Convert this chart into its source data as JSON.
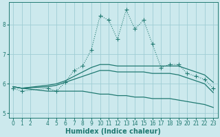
{
  "xlabel": "Humidex (Indice chaleur)",
  "bg_color": "#cce9ed",
  "grid_color": "#9fcdd4",
  "line_color": "#1e7870",
  "x": [
    0,
    1,
    2,
    3,
    4,
    5,
    6,
    7,
    8,
    9,
    10,
    11,
    12,
    13,
    14,
    15,
    16,
    17,
    18,
    19,
    20,
    21,
    22,
    23
  ],
  "line_jagged": [
    5.85,
    5.75,
    null,
    null,
    5.85,
    5.75,
    6.05,
    6.45,
    6.6,
    7.15,
    8.3,
    8.15,
    7.5,
    8.5,
    7.85,
    8.15,
    7.35,
    6.55,
    6.65,
    6.65,
    6.35,
    6.25,
    6.15,
    5.85
  ],
  "line_upper": [
    5.9,
    5.85,
    null,
    null,
    5.95,
    6.0,
    6.1,
    6.25,
    6.4,
    6.55,
    6.65,
    6.65,
    6.6,
    6.6,
    6.6,
    6.6,
    6.6,
    6.6,
    6.6,
    6.6,
    6.5,
    6.4,
    6.3,
    6.05
  ],
  "line_mean": [
    5.9,
    5.85,
    null,
    null,
    5.9,
    5.95,
    6.05,
    6.15,
    6.25,
    6.35,
    6.45,
    6.45,
    6.4,
    6.4,
    6.4,
    6.4,
    6.35,
    6.35,
    6.35,
    6.3,
    6.2,
    6.1,
    6.0,
    5.7
  ],
  "line_lower": [
    5.9,
    5.85,
    null,
    null,
    5.75,
    5.75,
    5.75,
    5.75,
    5.75,
    5.7,
    5.65,
    5.65,
    5.6,
    5.6,
    5.55,
    5.55,
    5.5,
    5.5,
    5.5,
    5.45,
    5.4,
    5.35,
    5.3,
    5.2
  ],
  "ylim": [
    4.85,
    8.75
  ],
  "xlim": [
    -0.5,
    23.5
  ],
  "yticks": [
    5,
    6,
    7,
    8
  ],
  "xticks": [
    0,
    1,
    2,
    4,
    5,
    6,
    7,
    8,
    9,
    10,
    11,
    12,
    13,
    14,
    15,
    16,
    17,
    18,
    19,
    20,
    21,
    22,
    23
  ],
  "xlabel_fontsize": 7,
  "tick_fontsize": 5.5
}
